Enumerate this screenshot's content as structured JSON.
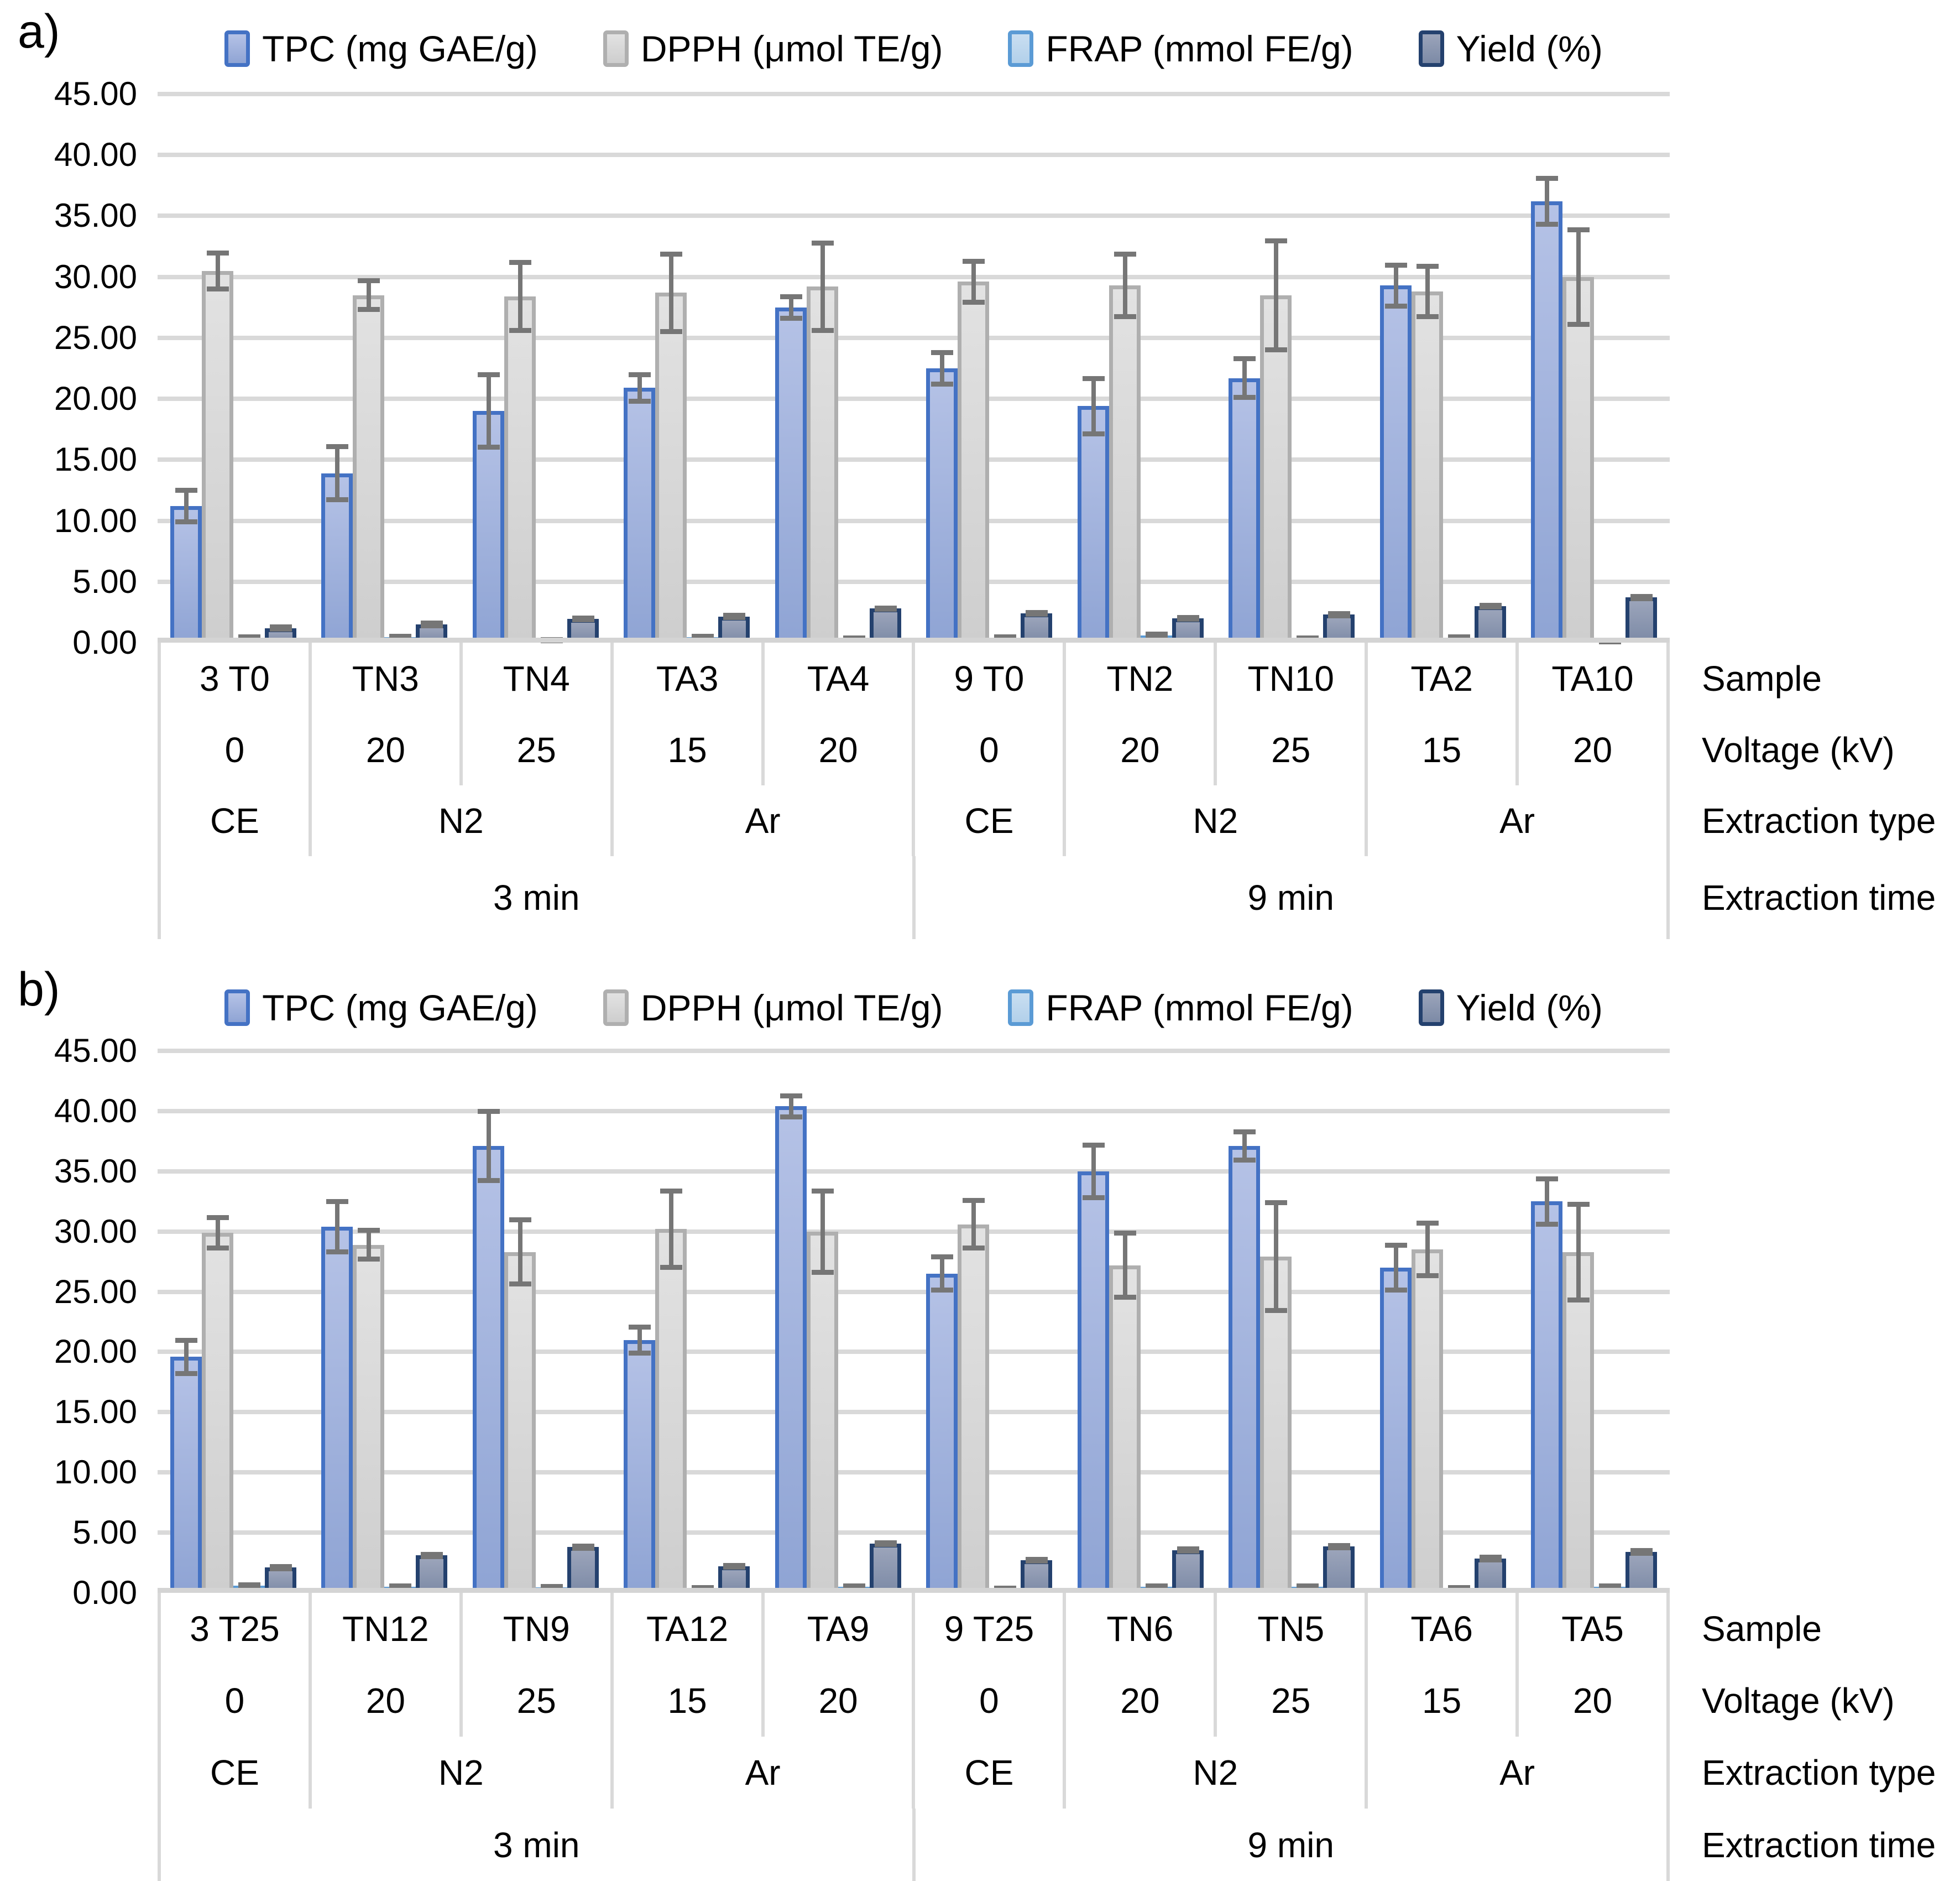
{
  "figure_title": "",
  "colors": {
    "gridline": "#D9D9D9",
    "axis_line": "#D4D4D4",
    "table_border": "#D9D9D9",
    "error_bar": "#767676",
    "text": "#000000"
  },
  "axis_row_labels": [
    "Sample",
    "Voltage (kV)",
    "Extraction type",
    "Extraction time"
  ],
  "chart_data": [
    {
      "type": "bar",
      "panel_label": "a)",
      "title": "",
      "xlabel": "",
      "ylabel": "",
      "ylim": [
        0,
        45
      ],
      "ytick_step": 5,
      "ytick_format": "0.00",
      "grid": true,
      "legend_position": "top",
      "categories": [
        "3 T0",
        "TN3",
        "TN4",
        "TA3",
        "TA4",
        "9 T0",
        "TN2",
        "TN10",
        "TA2",
        "TA10"
      ],
      "voltage_row": [
        "0",
        "20",
        "25",
        "15",
        "20",
        "0",
        "20",
        "25",
        "15",
        "20"
      ],
      "extraction_type_row": [
        {
          "label": "CE",
          "span": 1
        },
        {
          "label": "N2",
          "span": 2
        },
        {
          "label": "Ar",
          "span": 2
        },
        {
          "label": "CE",
          "span": 1
        },
        {
          "label": "N2",
          "span": 2
        },
        {
          "label": "Ar",
          "span": 2
        }
      ],
      "extraction_time_row": [
        {
          "label": "3 min",
          "span": 5
        },
        {
          "label": "9 min",
          "span": 5
        }
      ],
      "series": [
        {
          "name": "TPC (mg GAE/g)",
          "fill_top": "#B5C2E6",
          "fill_bottom": "#8FA4D4",
          "border": "#4472C4",
          "values": [
            11.2,
            13.9,
            19.0,
            20.9,
            27.5,
            22.5,
            19.4,
            21.7,
            29.3,
            36.2
          ],
          "errors": [
            1.3,
            2.2,
            3.0,
            1.1,
            0.9,
            1.3,
            2.3,
            1.6,
            1.7,
            1.9
          ]
        },
        {
          "name": "DPPH (μmol TE/g)",
          "fill_top": "#E2E2E2",
          "fill_bottom": "#CECECE",
          "border": "#AFAFAF",
          "values": [
            30.5,
            28.5,
            28.4,
            28.7,
            29.2,
            29.6,
            29.3,
            28.5,
            28.8,
            30.0
          ],
          "errors": [
            1.5,
            1.2,
            2.8,
            3.2,
            3.6,
            1.7,
            2.6,
            4.5,
            2.1,
            3.9
          ]
        },
        {
          "name": "FRAP (mmol FE/g)",
          "fill_top": "#C9DEF1",
          "fill_bottom": "#B2D0EA",
          "border": "#5B9BD5",
          "values": [
            0.4,
            0.45,
            0.2,
            0.45,
            0.35,
            0.4,
            0.6,
            0.35,
            0.4,
            0.1
          ],
          "errors": [
            0.1,
            0.1,
            0.05,
            0.1,
            0.08,
            0.1,
            0.12,
            0.08,
            0.1,
            0.05
          ]
        },
        {
          "name": "Yield (%)",
          "fill_top": "#9BA4BA",
          "fill_bottom": "#7C8AA6",
          "border": "#24416E",
          "values": [
            1.2,
            1.5,
            1.95,
            2.15,
            2.8,
            2.4,
            2.0,
            2.3,
            3.0,
            3.7
          ],
          "errors": [
            0.12,
            0.15,
            0.1,
            0.1,
            0.08,
            0.1,
            0.1,
            0.1,
            0.08,
            0.1
          ]
        }
      ]
    },
    {
      "type": "bar",
      "panel_label": "b)",
      "title": "",
      "xlabel": "",
      "ylabel": "",
      "ylim": [
        0,
        45
      ],
      "ytick_step": 5,
      "ytick_format": "0.00",
      "grid": true,
      "legend_position": "top",
      "categories": [
        "3 T25",
        "TN12",
        "TN9",
        "TA12",
        "TA9",
        "9 T25",
        "TN6",
        "TN5",
        "TA6",
        "TA5"
      ],
      "voltage_row": [
        "0",
        "20",
        "25",
        "15",
        "20",
        "0",
        "20",
        "25",
        "15",
        "20"
      ],
      "extraction_type_row": [
        {
          "label": "CE",
          "span": 1
        },
        {
          "label": "N2",
          "span": 2
        },
        {
          "label": "Ar",
          "span": 2
        },
        {
          "label": "CE",
          "span": 1
        },
        {
          "label": "N2",
          "span": 2
        },
        {
          "label": "Ar",
          "span": 2
        }
      ],
      "extraction_time_row": [
        {
          "label": "3 min",
          "span": 5
        },
        {
          "label": "9 min",
          "span": 5
        }
      ],
      "series": [
        {
          "name": "TPC (mg GAE/g)",
          "fill_top": "#B5C2E6",
          "fill_bottom": "#8FA4D4",
          "border": "#4472C4",
          "values": [
            19.6,
            30.4,
            37.1,
            21.0,
            40.4,
            26.5,
            35.0,
            37.1,
            27.0,
            32.5
          ],
          "errors": [
            1.4,
            2.1,
            2.9,
            1.1,
            0.9,
            1.4,
            2.2,
            1.2,
            1.9,
            1.9
          ]
        },
        {
          "name": "DPPH (μmol TE/g)",
          "fill_top": "#E2E2E2",
          "fill_bottom": "#CECECE",
          "border": "#AFAFAF",
          "values": [
            29.9,
            28.9,
            28.3,
            30.2,
            30.0,
            30.6,
            27.2,
            27.9,
            28.5,
            28.3
          ],
          "errors": [
            1.3,
            1.2,
            2.7,
            3.2,
            3.4,
            2.0,
            2.7,
            4.5,
            2.2,
            4.0
          ]
        },
        {
          "name": "FRAP (mmol FE/g)",
          "fill_top": "#C9DEF1",
          "fill_bottom": "#B2D0EA",
          "border": "#5B9BD5",
          "values": [
            0.6,
            0.5,
            0.45,
            0.4,
            0.5,
            0.35,
            0.5,
            0.5,
            0.4,
            0.5
          ],
          "errors": [
            0.1,
            0.1,
            0.1,
            0.08,
            0.1,
            0.08,
            0.1,
            0.1,
            0.08,
            0.1
          ]
        },
        {
          "name": "Yield (%)",
          "fill_top": "#9BA4BA",
          "fill_bottom": "#7C8AA6",
          "border": "#24416E",
          "values": [
            2.1,
            3.1,
            3.8,
            2.2,
            4.1,
            2.7,
            3.55,
            3.85,
            2.85,
            3.4
          ],
          "errors": [
            0.12,
            0.1,
            0.12,
            0.1,
            0.1,
            0.1,
            0.12,
            0.12,
            0.12,
            0.12
          ]
        }
      ]
    }
  ]
}
